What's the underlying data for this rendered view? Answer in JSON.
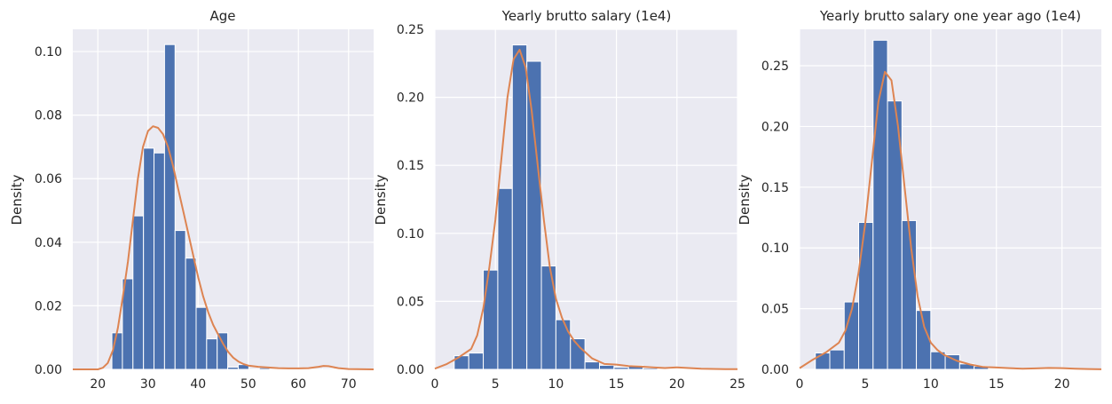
{
  "chart_data": [
    {
      "type": "bar",
      "title": "Age",
      "xlabel": "",
      "ylabel": "Density",
      "xlim": [
        15,
        75
      ],
      "ylim": [
        0,
        0.107
      ],
      "xticks": [
        "20",
        "30",
        "40",
        "50",
        "60",
        "70"
      ],
      "yticks": [
        "0.00",
        "0.02",
        "0.04",
        "0.06",
        "0.08",
        "0.10"
      ],
      "grid": true,
      "bin_edges": [
        22.8,
        24.9,
        27.0,
        29.1,
        31.2,
        33.3,
        35.4,
        37.5,
        39.6,
        41.7,
        43.8,
        45.9,
        48.0,
        50.1,
        52.2,
        54.3,
        56.4,
        58.5,
        60.6,
        62.7,
        64.8,
        66.9
      ],
      "values": [
        0.0115,
        0.0285,
        0.0483,
        0.0696,
        0.0681,
        0.1022,
        0.0437,
        0.035,
        0.0195,
        0.0096,
        0.0115,
        0.0007,
        0.0015,
        0,
        0.0005,
        0,
        0,
        0,
        0,
        0,
        0.0003
      ],
      "kde_x": [
        15,
        18,
        20,
        21,
        22,
        23,
        24,
        25,
        26,
        27,
        28,
        29,
        30,
        31,
        32,
        33,
        34,
        35,
        36,
        37,
        38,
        39,
        40,
        41,
        42,
        43,
        44,
        45,
        46,
        47,
        48,
        49,
        50,
        52,
        54,
        56,
        58,
        60,
        62,
        64,
        65,
        66,
        67,
        68,
        70,
        75
      ],
      "kde_y": [
        0,
        0,
        0,
        0.0005,
        0.002,
        0.006,
        0.013,
        0.023,
        0.034,
        0.047,
        0.06,
        0.07,
        0.075,
        0.0765,
        0.076,
        0.074,
        0.07,
        0.064,
        0.057,
        0.05,
        0.043,
        0.036,
        0.029,
        0.023,
        0.018,
        0.014,
        0.011,
        0.008,
        0.0055,
        0.0037,
        0.0025,
        0.0017,
        0.0012,
        0.0008,
        0.0006,
        0.0004,
        0.0003,
        0.0003,
        0.0004,
        0.0008,
        0.0011,
        0.001,
        0.0007,
        0.0004,
        0.0001,
        0
      ]
    },
    {
      "type": "bar",
      "title": "Yearly brutto salary (1e4)",
      "xlabel": "",
      "ylabel": "Density",
      "xlim": [
        0,
        25
      ],
      "ylim": [
        0,
        0.25
      ],
      "xticks": [
        "0",
        "5",
        "10",
        "15",
        "20",
        "25"
      ],
      "yticks": [
        "0.00",
        "0.05",
        "0.10",
        "0.15",
        "0.20",
        "0.25"
      ],
      "grid": true,
      "bin_edges": [
        1.6,
        2.8,
        4.0,
        5.2,
        6.4,
        7.6,
        8.8,
        10.0,
        11.2,
        12.4,
        13.6,
        14.8,
        16.0,
        17.2,
        18.4,
        19.6,
        20.8
      ],
      "values": [
        0.01,
        0.012,
        0.073,
        0.133,
        0.2385,
        0.2265,
        0.076,
        0.0365,
        0.0225,
        0.0055,
        0.003,
        0.0015,
        0.003,
        0.001,
        0.0005,
        0.0005
      ],
      "kde_x": [
        0,
        1,
        2,
        3,
        3.5,
        4,
        4.5,
        5,
        5.5,
        6,
        6.5,
        7,
        7.5,
        8,
        8.5,
        9,
        9.5,
        10,
        10.5,
        11,
        11.5,
        12,
        12.5,
        13,
        14,
        15,
        16,
        17,
        18,
        19,
        20,
        21,
        22,
        23,
        24,
        25
      ],
      "kde_y": [
        0.0005,
        0.004,
        0.009,
        0.015,
        0.025,
        0.045,
        0.075,
        0.11,
        0.155,
        0.2,
        0.228,
        0.235,
        0.222,
        0.19,
        0.15,
        0.11,
        0.075,
        0.052,
        0.038,
        0.028,
        0.021,
        0.016,
        0.012,
        0.008,
        0.004,
        0.0035,
        0.0025,
        0.002,
        0.0015,
        0.001,
        0.0015,
        0.001,
        0.0005,
        0.0003,
        0.0002,
        0.0001
      ]
    },
    {
      "type": "bar",
      "title": "Yearly brutto salary one year ago (1e4)",
      "xlabel": "",
      "ylabel": "Density",
      "xlim": [
        0,
        23
      ],
      "ylim": [
        0,
        0.28
      ],
      "xticks": [
        "0",
        "5",
        "10",
        "15",
        "20"
      ],
      "yticks": [
        "0.00",
        "0.05",
        "0.10",
        "0.15",
        "0.20",
        "0.25"
      ],
      "grid": true,
      "bin_edges": [
        1.2,
        2.3,
        3.4,
        4.5,
        5.6,
        6.7,
        7.8,
        8.9,
        10.0,
        11.1,
        12.2,
        13.3,
        14.4,
        15.5,
        16.6,
        17.7,
        18.8,
        19.9,
        21.0
      ],
      "values": [
        0.0135,
        0.016,
        0.0555,
        0.121,
        0.271,
        0.221,
        0.1225,
        0.0485,
        0.0145,
        0.012,
        0.0045,
        0.0025,
        0.0005,
        0.0005,
        0.0003,
        0.0003,
        0.0003,
        0.0003
      ],
      "kde_x": [
        0,
        1,
        2,
        3,
        3.5,
        4,
        4.5,
        5,
        5.5,
        6,
        6.5,
        7,
        7.5,
        8,
        8.5,
        9,
        9.5,
        10,
        10.5,
        11,
        12,
        13,
        14,
        15,
        16,
        17,
        18,
        19,
        20,
        21,
        22,
        23
      ],
      "kde_y": [
        0.001,
        0.008,
        0.014,
        0.022,
        0.032,
        0.05,
        0.08,
        0.12,
        0.17,
        0.22,
        0.245,
        0.238,
        0.2,
        0.15,
        0.1,
        0.06,
        0.035,
        0.022,
        0.016,
        0.012,
        0.007,
        0.004,
        0.002,
        0.0015,
        0.001,
        0.0006,
        0.0008,
        0.0012,
        0.001,
        0.0006,
        0.0003,
        0.0001
      ]
    }
  ],
  "colors": {
    "panel_background": "#eaeaf2",
    "grid": "#ffffff",
    "bar_fill": "#4c72b0",
    "bar_edge": "#ffffff",
    "kde_line": "#dd8452",
    "text": "#262626"
  }
}
